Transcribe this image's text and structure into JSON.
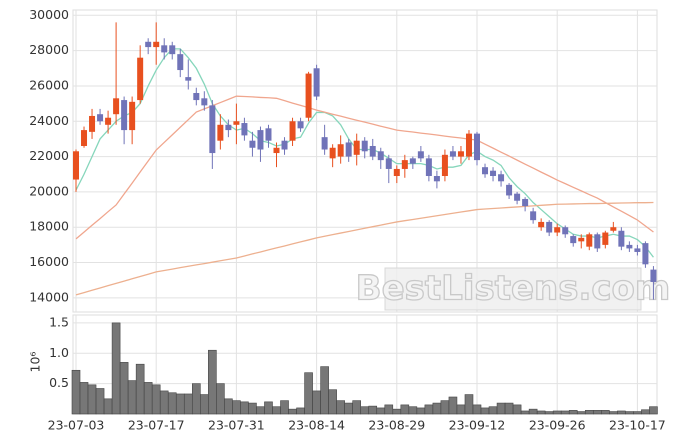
{
  "chart_data": [
    {
      "type": "candlestick",
      "up_color": "#e8501f",
      "down_color": "#7073b8",
      "open": [
        20700,
        22600,
        23400,
        24400,
        23800,
        24400,
        25200,
        23500,
        25200,
        28500,
        28200,
        28300,
        28300,
        27800,
        26500,
        25600,
        25300,
        24900,
        22900,
        23800,
        23800,
        23900,
        22900,
        23500,
        23600,
        22200,
        22900,
        22900,
        24000,
        24200,
        27000,
        23100,
        21900,
        22000,
        22800,
        22100,
        22900,
        22600,
        22300,
        21900,
        20900,
        21300,
        21900,
        22300,
        21900,
        20900,
        20900,
        22300,
        22000,
        22000,
        23300,
        21400,
        21200,
        21000,
        20400,
        19900,
        19600,
        18900,
        18000,
        18300,
        17700,
        18000,
        17500,
        17200,
        16900,
        17600,
        17000,
        17800,
        17800,
        17000,
        16800,
        17100,
        15600
      ],
      "high": [
        22400,
        23700,
        24700,
        24700,
        24600,
        29600,
        25400,
        25400,
        28300,
        28700,
        29600,
        28700,
        28500,
        28100,
        27500,
        25900,
        25700,
        25200,
        24400,
        24100,
        25000,
        24200,
        23400,
        23700,
        23800,
        22800,
        23100,
        24200,
        24200,
        26800,
        27200,
        23800,
        22700,
        23200,
        23000,
        23300,
        23100,
        23000,
        22500,
        22100,
        21500,
        22100,
        22000,
        22600,
        22100,
        21200,
        22400,
        22600,
        22600,
        23500,
        23400,
        21600,
        21400,
        21200,
        20500,
        20000,
        19700,
        19100,
        18500,
        18400,
        18200,
        18100,
        17600,
        17600,
        17700,
        17700,
        17800,
        18300,
        18000,
        17200,
        17000,
        17200,
        15800
      ],
      "low": [
        20000,
        22500,
        23000,
        23800,
        23300,
        23800,
        22700,
        22700,
        25000,
        27800,
        27200,
        27500,
        27500,
        26500,
        25800,
        24900,
        24600,
        21300,
        22400,
        23100,
        22700,
        22900,
        22000,
        21700,
        22500,
        21400,
        22100,
        22600,
        23400,
        24000,
        25200,
        22100,
        21400,
        21600,
        21700,
        21500,
        21900,
        21800,
        21300,
        20500,
        20500,
        20800,
        21300,
        21700,
        20600,
        20200,
        20600,
        21800,
        21600,
        21800,
        21500,
        20800,
        20600,
        20300,
        19600,
        19300,
        18900,
        18200,
        17800,
        17500,
        17500,
        17400,
        16900,
        16800,
        16700,
        16600,
        16800,
        17700,
        16700,
        16600,
        16400,
        15700,
        13900
      ],
      "close": [
        22300,
        23500,
        24300,
        24000,
        24200,
        25300,
        23500,
        25100,
        27600,
        28200,
        28500,
        27900,
        27800,
        26900,
        26300,
        25200,
        24900,
        22200,
        23800,
        23500,
        24000,
        23200,
        22500,
        22400,
        22900,
        22500,
        22400,
        24000,
        23600,
        26700,
        25400,
        22400,
        22500,
        22700,
        22000,
        22900,
        22300,
        22000,
        21800,
        21300,
        21300,
        21800,
        21600,
        21900,
        20900,
        20600,
        22100,
        22000,
        22300,
        23300,
        21800,
        21000,
        20900,
        20600,
        19800,
        19500,
        19200,
        18400,
        18300,
        17700,
        18000,
        17600,
        17100,
        17400,
        17600,
        16800,
        17700,
        18000,
        16900,
        16800,
        16600,
        15900,
        14900
      ],
      "series": [
        {
          "color": "#86d6bb",
          "values": [
            20100,
            21000,
            22000,
            23000,
            23500,
            24000,
            24300,
            24500,
            25000,
            26000,
            26900,
            27600,
            28100,
            28100,
            27600,
            27000,
            26100,
            25000,
            24300,
            23800,
            23500,
            23600,
            23300,
            22900,
            22800,
            22600,
            22700,
            23000,
            23100,
            23900,
            24500,
            24500,
            24300,
            23800,
            23000,
            22400,
            22400,
            22400,
            22200,
            21900,
            21600,
            21600,
            21600,
            21600,
            21500,
            21300,
            21400,
            21400,
            21500,
            22100,
            22300,
            22000,
            21800,
            21500,
            20800,
            20300,
            19900,
            19400,
            19000,
            18600,
            18200,
            17900,
            17600,
            17500,
            17500,
            17400,
            17500,
            17600,
            17500,
            17500,
            17300,
            16900,
            16300
          ]
        },
        {
          "color": "#f0a68e",
          "values": [
            17340,
            17720,
            18110,
            18490,
            18880,
            19260,
            19880,
            20500,
            21130,
            21750,
            22370,
            22800,
            23230,
            23660,
            24090,
            24520,
            24700,
            24880,
            25060,
            25240,
            25420,
            25400,
            25380,
            25350,
            25330,
            25300,
            25170,
            25030,
            24900,
            24770,
            24630,
            24520,
            24400,
            24290,
            24170,
            24060,
            23950,
            23840,
            23720,
            23610,
            23500,
            23440,
            23390,
            23330,
            23280,
            23220,
            23160,
            23100,
            23050,
            22990,
            22930,
            22700,
            22480,
            22250,
            22030,
            21800,
            21570,
            21350,
            21120,
            20900,
            20670,
            20470,
            20260,
            20060,
            19850,
            19650,
            19400,
            19150,
            18910,
            18660,
            18410,
            18070,
            17730
          ]
        },
        {
          "color": "#edb08f",
          "values": [
            14170,
            14300,
            14430,
            14560,
            14690,
            14820,
            14950,
            15080,
            15210,
            15340,
            15470,
            15550,
            15630,
            15710,
            15790,
            15870,
            15940,
            16020,
            16100,
            16180,
            16260,
            16370,
            16490,
            16600,
            16720,
            16830,
            16940,
            17060,
            17170,
            17280,
            17400,
            17490,
            17580,
            17670,
            17760,
            17850,
            17940,
            18030,
            18120,
            18210,
            18300,
            18370,
            18440,
            18510,
            18580,
            18650,
            18720,
            18790,
            18860,
            18930,
            19000,
            19030,
            19060,
            19090,
            19120,
            19150,
            19180,
            19210,
            19240,
            19270,
            19300,
            19310,
            19320,
            19330,
            19340,
            19340,
            19350,
            19360,
            19370,
            19380,
            19390,
            19390,
            19400
          ]
        }
      ],
      "ylim": [
        13200,
        30300
      ],
      "yticks": [
        14000,
        16000,
        18000,
        20000,
        22000,
        24000,
        26000,
        28000,
        30000
      ],
      "grid": true,
      "watermark": "BestListens.com"
    },
    {
      "type": "bar",
      "color": "#777777",
      "ylabel": "10⁶",
      "categories": [
        "23-07-03",
        null,
        null,
        null,
        null,
        null,
        null,
        null,
        null,
        null,
        "23-07-17",
        null,
        null,
        null,
        null,
        null,
        null,
        null,
        null,
        null,
        "23-07-31",
        null,
        null,
        null,
        null,
        null,
        null,
        null,
        null,
        null,
        "23-08-14",
        null,
        null,
        null,
        null,
        null,
        null,
        null,
        null,
        null,
        "23-08-29",
        null,
        null,
        null,
        null,
        null,
        null,
        null,
        null,
        null,
        "23-09-12",
        null,
        null,
        null,
        null,
        null,
        null,
        null,
        null,
        null,
        "23-09-26",
        null,
        null,
        null,
        null,
        null,
        null,
        null,
        null,
        null,
        "23-10-17",
        null,
        null
      ],
      "values": [
        0.72,
        0.52,
        0.48,
        0.42,
        0.25,
        1.5,
        0.85,
        0.55,
        0.82,
        0.52,
        0.48,
        0.38,
        0.35,
        0.33,
        0.33,
        0.5,
        0.32,
        1.05,
        0.5,
        0.25,
        0.22,
        0.2,
        0.18,
        0.12,
        0.2,
        0.12,
        0.22,
        0.08,
        0.1,
        0.68,
        0.38,
        0.78,
        0.4,
        0.22,
        0.18,
        0.22,
        0.12,
        0.13,
        0.1,
        0.15,
        0.08,
        0.15,
        0.12,
        0.1,
        0.15,
        0.18,
        0.22,
        0.28,
        0.15,
        0.32,
        0.15,
        0.1,
        0.12,
        0.18,
        0.18,
        0.15,
        0.05,
        0.08,
        0.05,
        0.04,
        0.05,
        0.05,
        0.06,
        0.04,
        0.06,
        0.06,
        0.06,
        0.04,
        0.05,
        0.04,
        0.04,
        0.07,
        0.12
      ],
      "ylim": [
        0,
        1.63
      ],
      "yticks": [
        0.5,
        {
          "value": 1,
          "label": "1.0"
        },
        1.5
      ],
      "grid": true
    }
  ]
}
